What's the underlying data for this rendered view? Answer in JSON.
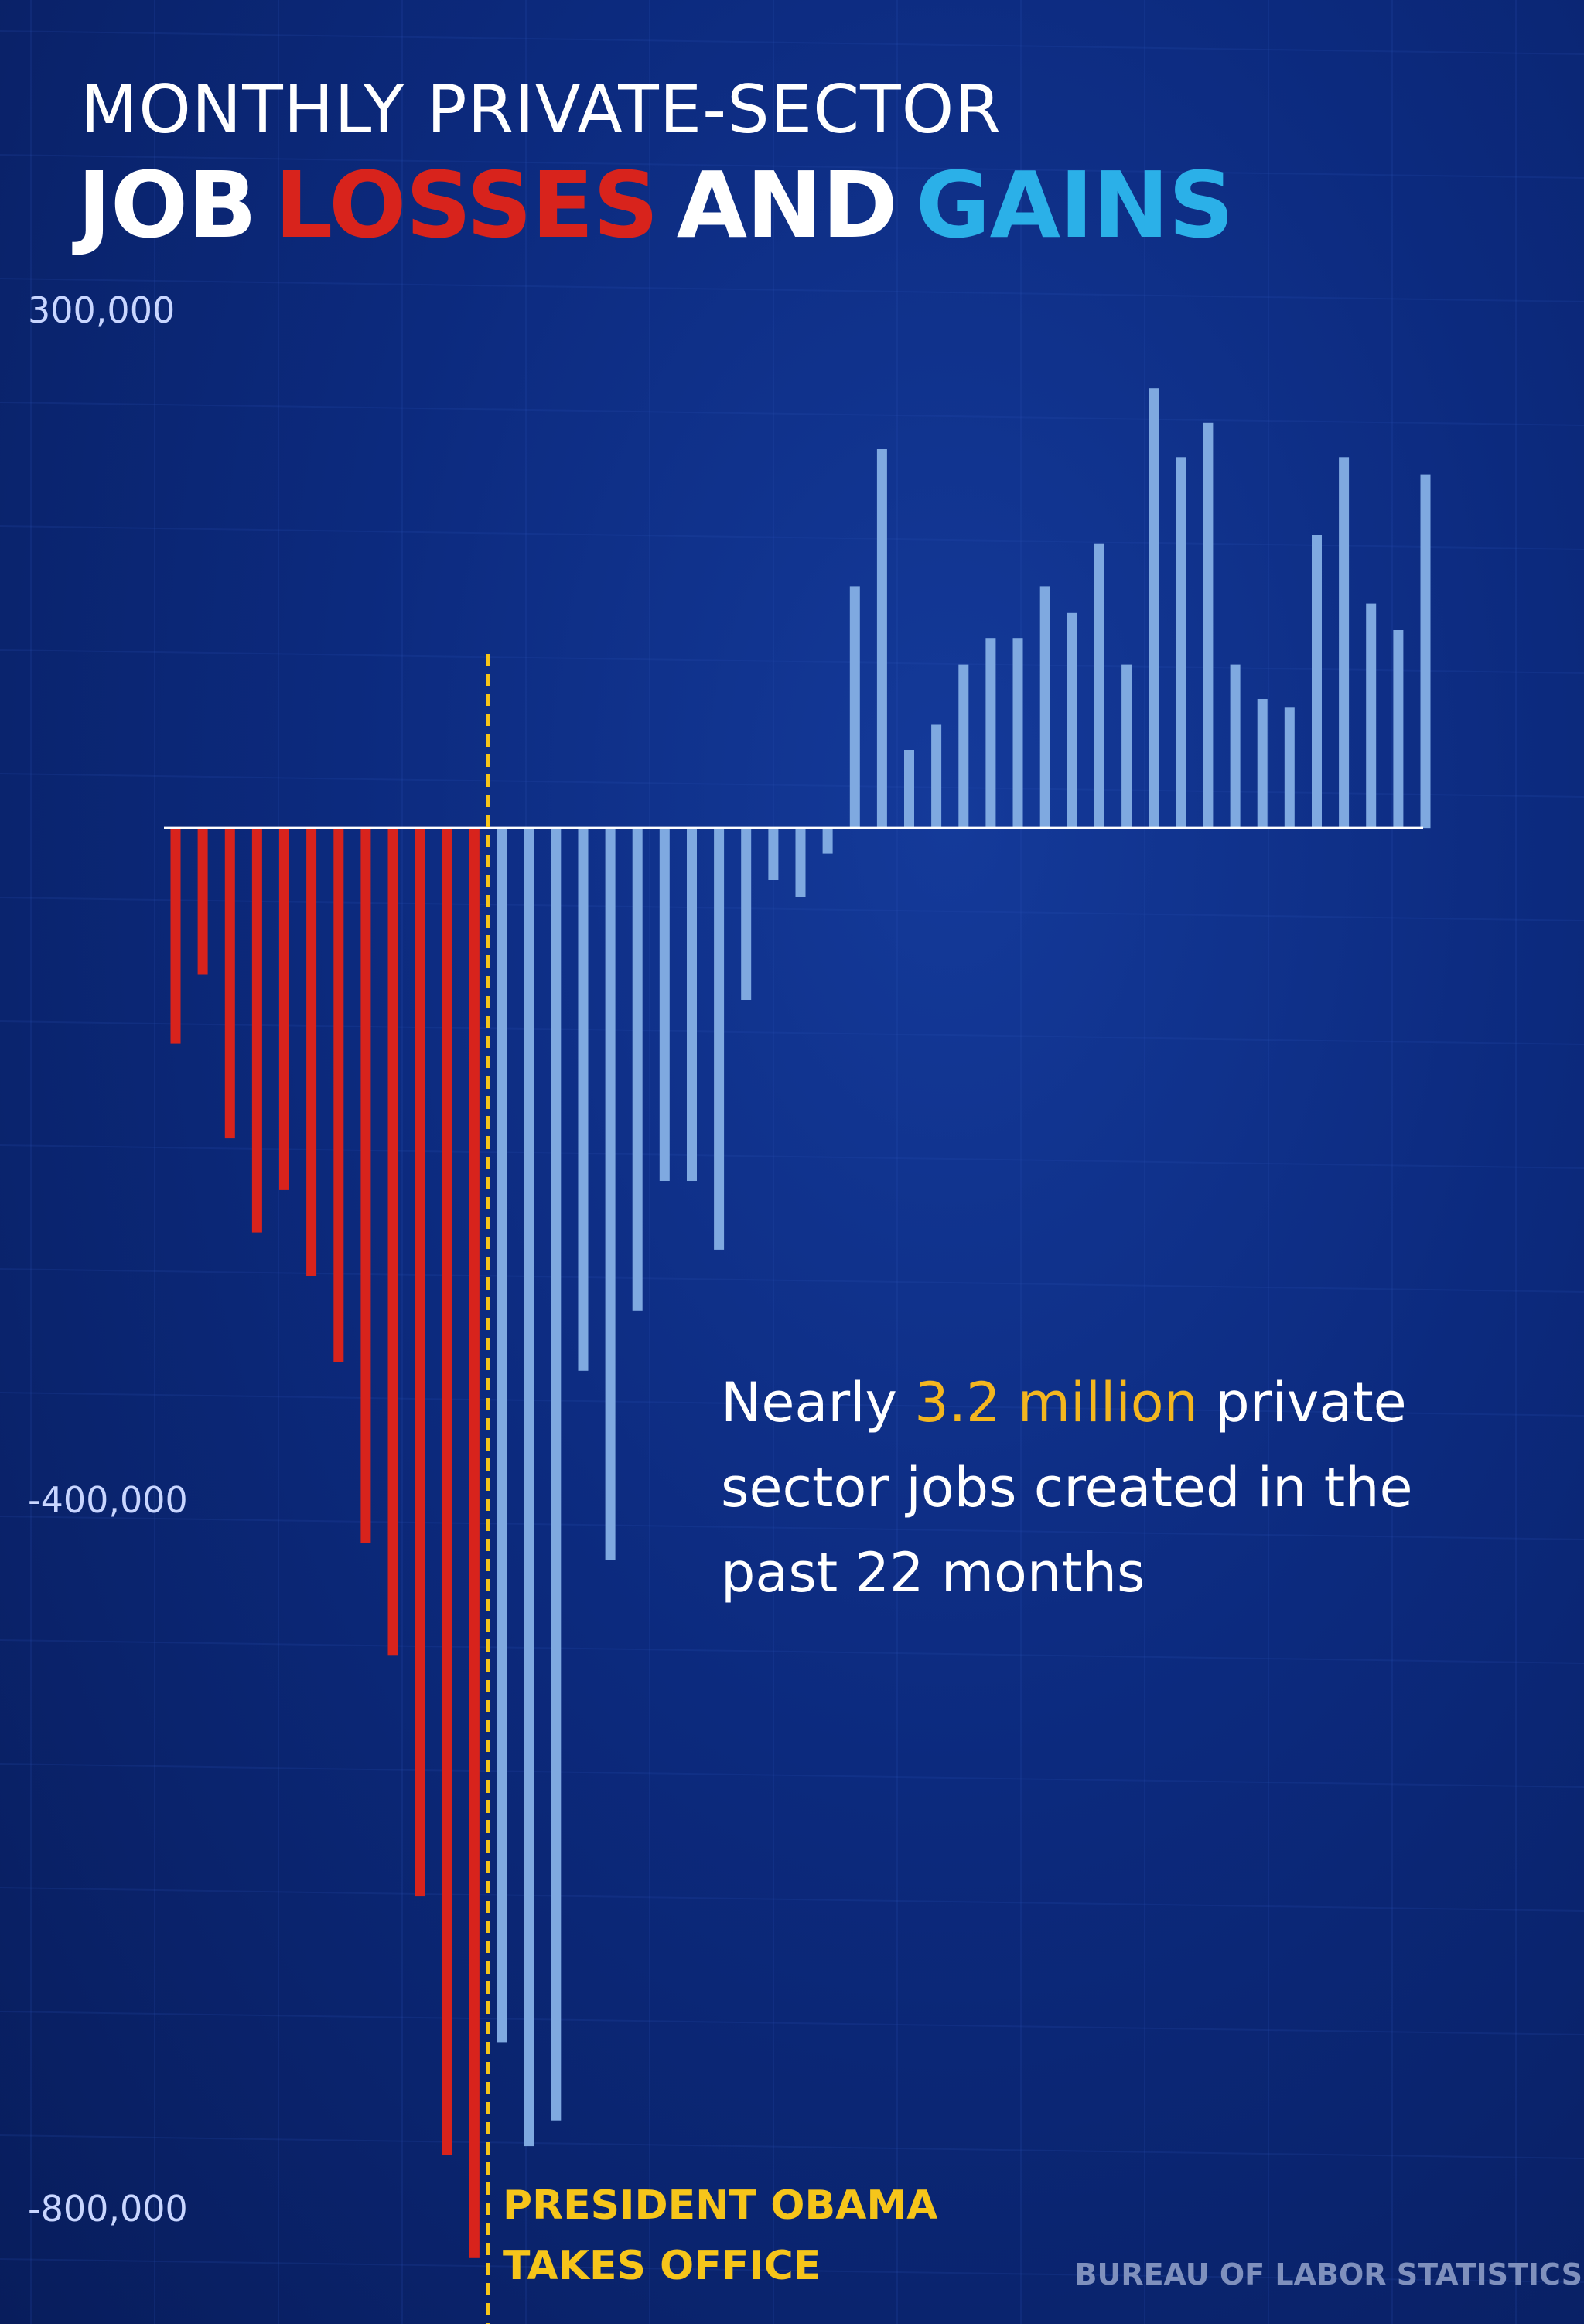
{
  "title": {
    "line1": "MONTHLY PRIVATE-SECTOR",
    "line2": [
      {
        "text": "JOB",
        "color": "#ffffff"
      },
      {
        "text": "LOSSES",
        "color": "#d8231c"
      },
      {
        "text": "AND",
        "color": "#ffffff"
      },
      {
        "text": "GAINS",
        "color": "#2bb0e8"
      }
    ]
  },
  "callout": {
    "prefix": "Nearly ",
    "highlight": "3.2 million",
    "suffix": " private sector jobs created in the past 22 months"
  },
  "marker": {
    "line1": "PRESIDENT OBAMA",
    "line2": "TAKES OFFICE"
  },
  "source": "BUREAU OF LABOR STATISTICS",
  "colors": {
    "losses_before": "#d8231c",
    "after_office": "#7fa9e0",
    "marker": "#f6c51a",
    "baseline": "#ffffff"
  },
  "chart_data": {
    "type": "bar",
    "ylim": [
      -800000,
      300000
    ],
    "y_ticks": [
      {
        "value": 300000,
        "label": "300,000"
      },
      {
        "value": -400000,
        "label": "-400,000"
      },
      {
        "value": -800000,
        "label": "-800,000"
      }
    ],
    "marker_after_index": 11,
    "series": [
      {
        "name": "Before Obama takes office",
        "color": "#d8231c",
        "values": [
          -125000,
          -85000,
          -180000,
          -235000,
          -210000,
          -260000,
          -310000,
          -415000,
          -480000,
          -620000,
          -770000,
          -830000
        ]
      },
      {
        "name": "After Obama takes office",
        "color": "#7fa9e0",
        "values": [
          -705000,
          -765000,
          -750000,
          -315000,
          -425000,
          -280000,
          -205000,
          -205000,
          -245000,
          -100000,
          -30000,
          -40000,
          -15000,
          140000,
          220000,
          45000,
          60000,
          95000,
          110000,
          110000,
          140000,
          125000,
          165000,
          95000,
          255000,
          215000,
          235000,
          95000,
          75000,
          70000,
          170000,
          215000,
          130000,
          115000,
          205000
        ]
      }
    ]
  }
}
